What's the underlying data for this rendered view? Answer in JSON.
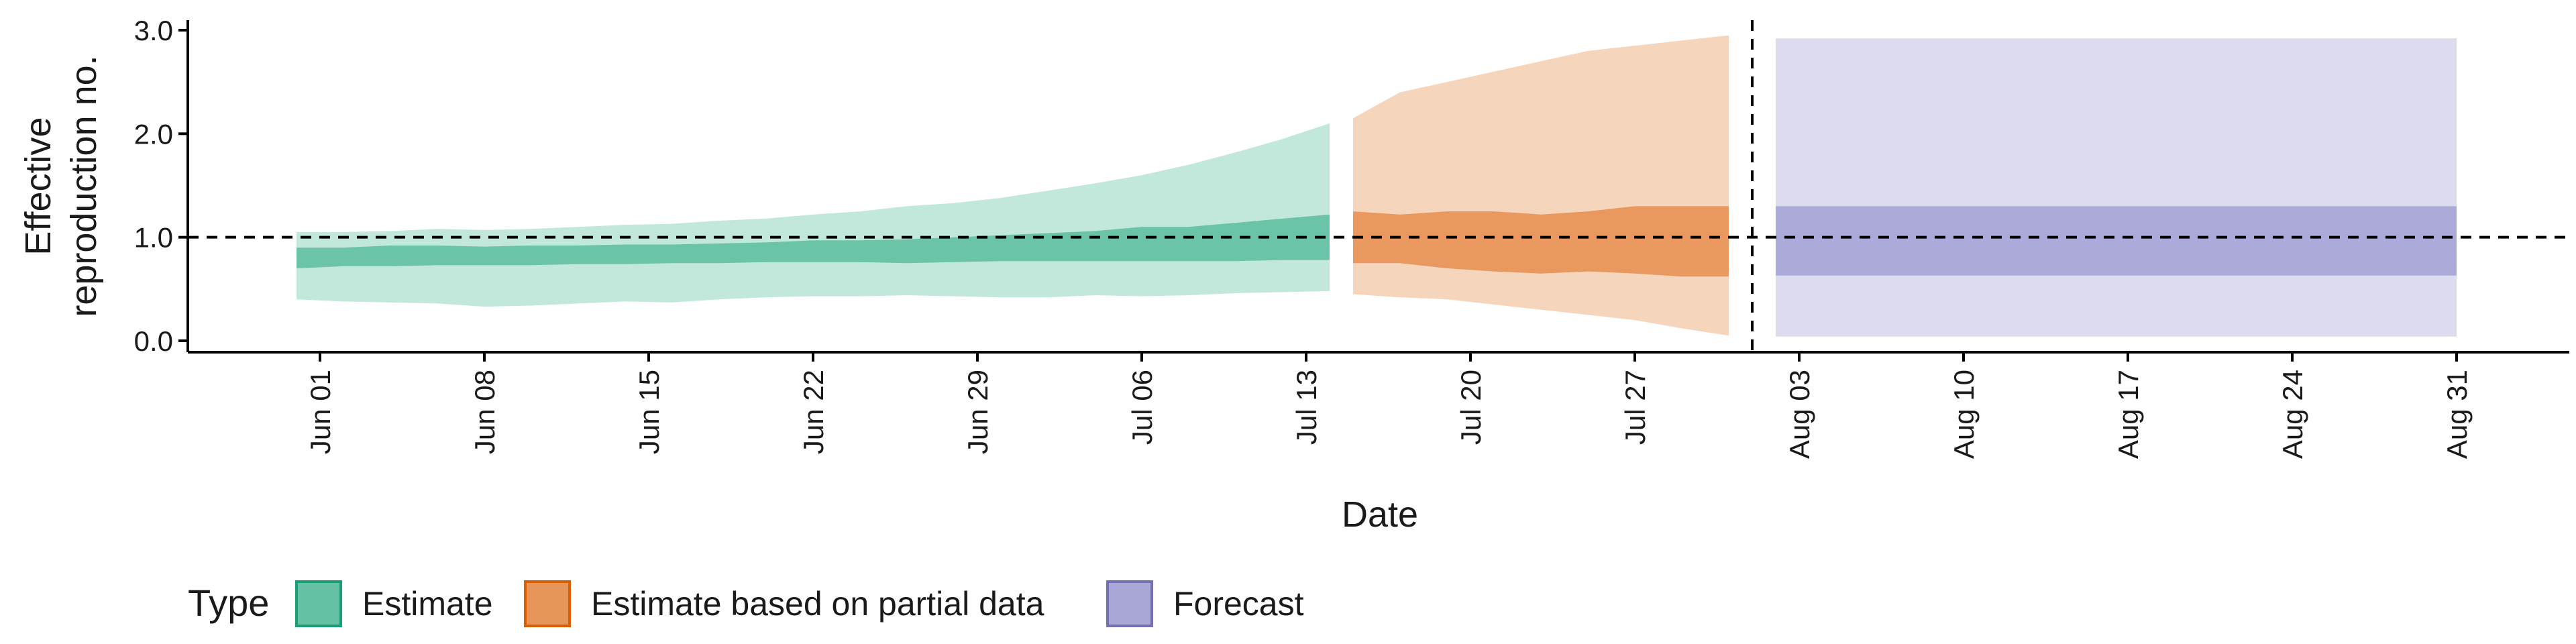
{
  "chart_data": {
    "type": "area",
    "title": "",
    "xlabel": "Date",
    "ylabel_lines": [
      "Effective",
      "reproduction no."
    ],
    "ylim": [
      0,
      3.0
    ],
    "yticks": [
      0.0,
      1.0,
      2.0,
      3.0
    ],
    "ytick_labels": [
      "0.0",
      "1.0",
      "2.0",
      "3.0"
    ],
    "xticks": [
      "2020-06-01",
      "2020-06-08",
      "2020-06-15",
      "2020-06-22",
      "2020-06-29",
      "2020-07-06",
      "2020-07-13",
      "2020-07-20",
      "2020-07-27",
      "2020-08-03",
      "2020-08-10",
      "2020-08-17",
      "2020-08-24",
      "2020-08-31"
    ],
    "xtick_labels": [
      "Jun 01",
      "Jun 08",
      "Jun 15",
      "Jun 22",
      "Jun 29",
      "Jul 06",
      "Jul 13",
      "Jul 20",
      "Jul 27",
      "Aug 03",
      "Aug 10",
      "Aug 17",
      "Aug 24",
      "Aug 31"
    ],
    "reference_line_y": 1.0,
    "forecast_start_date": "2020-08-01",
    "grid": false,
    "legend": {
      "title": "Type",
      "position": "bottom-left",
      "items": [
        {
          "label": "Estimate",
          "color": "#66c2a5",
          "border": "#1b9e77"
        },
        {
          "label": "Estimate based on partial data",
          "color": "#e8955a",
          "border": "#d95f02"
        },
        {
          "label": "Forecast",
          "color": "#a9a7d6",
          "border": "#7570b3"
        }
      ]
    },
    "series": [
      {
        "name": "Estimate",
        "dates": [
          "2020-05-31",
          "2020-06-02",
          "2020-06-04",
          "2020-06-06",
          "2020-06-08",
          "2020-06-10",
          "2020-06-12",
          "2020-06-14",
          "2020-06-16",
          "2020-06-18",
          "2020-06-20",
          "2020-06-22",
          "2020-06-24",
          "2020-06-26",
          "2020-06-28",
          "2020-06-30",
          "2020-07-02",
          "2020-07-04",
          "2020-07-06",
          "2020-07-08",
          "2020-07-10",
          "2020-07-12",
          "2020-07-14"
        ],
        "outer_upper": [
          1.05,
          1.05,
          1.06,
          1.08,
          1.07,
          1.08,
          1.1,
          1.12,
          1.13,
          1.16,
          1.18,
          1.22,
          1.25,
          1.3,
          1.33,
          1.38,
          1.45,
          1.52,
          1.6,
          1.7,
          1.82,
          1.95,
          2.1
        ],
        "outer_lower": [
          0.4,
          0.38,
          0.37,
          0.36,
          0.33,
          0.34,
          0.36,
          0.38,
          0.37,
          0.4,
          0.42,
          0.43,
          0.43,
          0.44,
          0.43,
          0.42,
          0.42,
          0.44,
          0.43,
          0.44,
          0.46,
          0.47,
          0.48
        ],
        "inner_upper": [
          0.9,
          0.9,
          0.92,
          0.92,
          0.91,
          0.92,
          0.92,
          0.93,
          0.93,
          0.94,
          0.95,
          0.97,
          0.97,
          0.98,
          1.0,
          1.02,
          1.04,
          1.06,
          1.1,
          1.1,
          1.14,
          1.18,
          1.22
        ],
        "inner_lower": [
          0.7,
          0.72,
          0.72,
          0.73,
          0.73,
          0.73,
          0.74,
          0.74,
          0.75,
          0.75,
          0.76,
          0.76,
          0.76,
          0.75,
          0.76,
          0.77,
          0.77,
          0.77,
          0.77,
          0.77,
          0.77,
          0.78,
          0.78
        ]
      },
      {
        "name": "Estimate based on partial data",
        "dates": [
          "2020-07-15",
          "2020-07-17",
          "2020-07-19",
          "2020-07-21",
          "2020-07-23",
          "2020-07-25",
          "2020-07-27",
          "2020-07-29",
          "2020-07-31"
        ],
        "outer_upper": [
          2.15,
          2.4,
          2.5,
          2.6,
          2.7,
          2.8,
          2.85,
          2.9,
          2.95
        ],
        "outer_lower": [
          0.45,
          0.42,
          0.4,
          0.35,
          0.3,
          0.25,
          0.2,
          0.12,
          0.05
        ],
        "inner_upper": [
          1.25,
          1.22,
          1.25,
          1.25,
          1.22,
          1.25,
          1.3,
          1.3,
          1.3
        ],
        "inner_lower": [
          0.75,
          0.75,
          0.7,
          0.67,
          0.65,
          0.67,
          0.65,
          0.62,
          0.62
        ]
      },
      {
        "name": "Forecast",
        "dates": [
          "2020-08-02",
          "2020-08-31"
        ],
        "outer_upper": [
          2.92,
          2.92
        ],
        "outer_lower": [
          0.04,
          0.04
        ],
        "inner_upper": [
          1.3,
          1.3
        ],
        "inner_lower": [
          0.63,
          0.63
        ]
      }
    ]
  }
}
